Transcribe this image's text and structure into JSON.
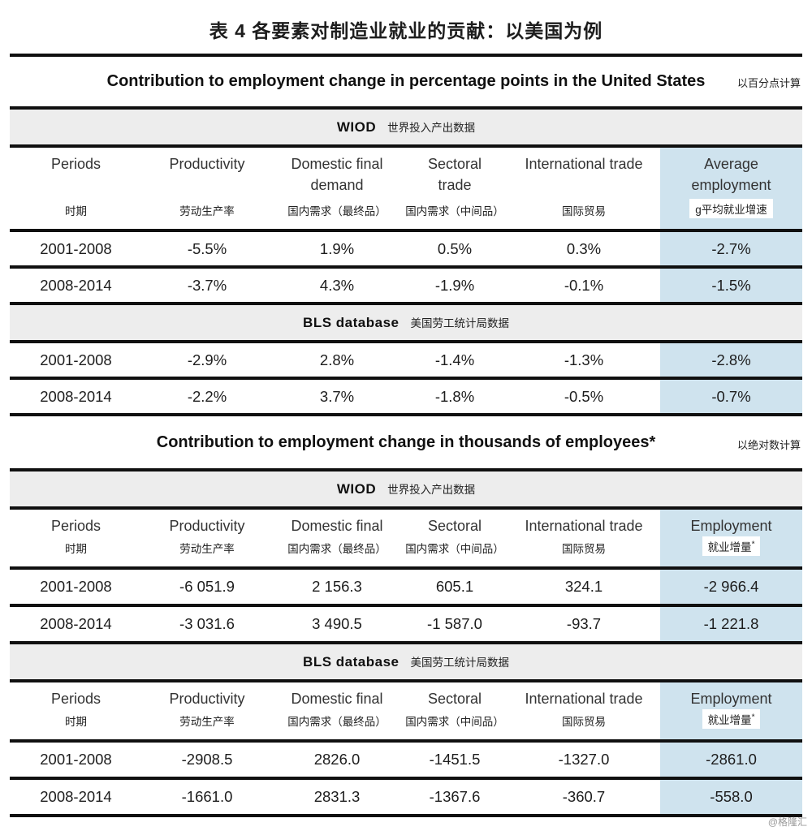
{
  "title": "表 4 各要素对制造业就业的贡献：以美国为例",
  "watermark": "@格隆汇",
  "colors": {
    "accent_blue": "#cfe3ee",
    "band_gray": "#ededed",
    "line": "#101010"
  },
  "sections": [
    {
      "heading": "Contribution to employment change in percentage points in the United States",
      "heading_note": "以百分点计算",
      "table": {
        "columns_en": [
          "Periods",
          "Productivity",
          "Domestic final\ndemand",
          "Sectoral\ntrade",
          "International trade",
          "Average\nemployment"
        ],
        "columns_zh": [
          "时期",
          "劳动生产率",
          "国内需求（最终品）",
          "国内需求（中间品）",
          "国际贸易",
          "g平均就业增速"
        ],
        "groups": [
          {
            "band_en": "WIOD",
            "band_zh": "世界投入产出数据",
            "show_headers": true,
            "rows": [
              [
                "2001-2008",
                "-5.5%",
                "1.9%",
                "0.5%",
                "0.3%",
                "-2.7%"
              ],
              [
                "2008-2014",
                "-3.7%",
                "4.3%",
                "-1.9%",
                "-0.1%",
                "-1.5%"
              ]
            ]
          },
          {
            "band_en": "BLS database",
            "band_zh": "美国劳工统计局数据",
            "show_headers": false,
            "rows": [
              [
                "2001-2008",
                "-2.9%",
                "2.8%",
                "-1.4%",
                "-1.3%",
                "-2.8%"
              ],
              [
                "2008-2014",
                "-2.2%",
                "3.7%",
                "-1.8%",
                "-0.5%",
                "-0.7%"
              ]
            ]
          }
        ]
      }
    },
    {
      "heading": "Contribution to employment change in thousands of employees*",
      "heading_note": "以绝对数计算",
      "table": {
        "columns_en": [
          "Periods",
          "Productivity",
          "Domestic final",
          "Sectoral",
          "International trade",
          "Employment"
        ],
        "columns_zh": [
          "时期",
          "劳动生产率",
          "国内需求（最终品）",
          "国内需求（中间品）",
          "国际贸易",
          "就业增量*"
        ],
        "groups": [
          {
            "band_en": "WIOD",
            "band_zh": "世界投入产出数据",
            "show_headers": true,
            "rows": [
              [
                "2001-2008",
                "-6 051.9",
                "2 156.3",
                "605.1",
                "324.1",
                "-2 966.4"
              ],
              [
                "2008-2014",
                "-3 031.6",
                "3 490.5",
                "-1 587.0",
                "-93.7",
                "-1 221.8"
              ]
            ]
          },
          {
            "band_en": "BLS database",
            "band_zh": "美国劳工统计局数据",
            "show_headers": true,
            "rows": [
              [
                "2001-2008",
                "-2908.5",
                "2826.0",
                "-1451.5",
                "-1327.0",
                "-2861.0"
              ],
              [
                "2008-2014",
                "-1661.0",
                "2831.3",
                "-1367.6",
                "-360.7",
                "-558.0"
              ]
            ]
          }
        ]
      }
    }
  ]
}
